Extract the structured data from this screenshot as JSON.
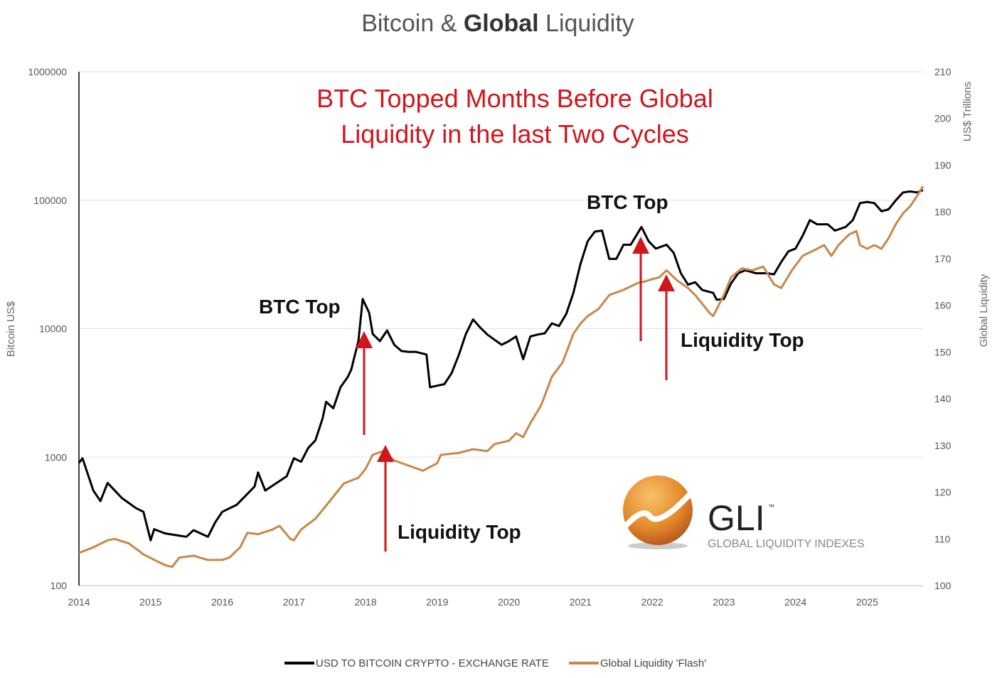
{
  "chart_data": {
    "type": "line",
    "title_parts": [
      "Bitcoin & ",
      "Global",
      " Liquidity"
    ],
    "subtitle_lines": [
      "BTC Topped Months Before Global",
      "Liquidity in the last Two Cycles"
    ],
    "ylabel_left": "Bitcoin US$",
    "ylabel_right": "Global Liquidity",
    "ylabel_right_unit": "US$ Trillions",
    "y_left_scale": "log",
    "ylim_left": [
      100,
      1000000
    ],
    "ylim_right": [
      100,
      210
    ],
    "xlim": [
      2014,
      2025.78
    ],
    "x_ticks": [
      "2014",
      "2015",
      "2016",
      "2017",
      "2018",
      "2019",
      "2020",
      "2021",
      "2022",
      "2023",
      "2024",
      "2025"
    ],
    "y_left_ticks": [
      "100",
      "1000",
      "10000",
      "100000",
      "1000000"
    ],
    "y_right_ticks": [
      "100",
      "110",
      "120",
      "130",
      "140",
      "150",
      "160",
      "170",
      "180",
      "190",
      "200",
      "210"
    ],
    "grid": "horizontal",
    "legend_position": "bottom",
    "colors": {
      "btc": "#000000",
      "liquidity": "#c8874a",
      "annotation": "#d0161c"
    },
    "annotations": [
      {
        "text": "BTC Top",
        "x": 2017.96
      },
      {
        "text": "Liquidity Top",
        "x": 2018.25
      },
      {
        "text": "BTC Top",
        "x": 2021.85
      },
      {
        "text": "Liquidity Top",
        "x": 2022.2
      }
    ],
    "series": [
      {
        "name": "USD TO BITCOIN CRYPTO - EXCHANGE RATE",
        "axis": "left",
        "x": [
          2014.0,
          2014.05,
          2014.2,
          2014.3,
          2014.4,
          2014.5,
          2014.6,
          2014.8,
          2014.9,
          2015.0,
          2015.05,
          2015.2,
          2015.5,
          2015.6,
          2015.8,
          2015.9,
          2016.0,
          2016.2,
          2016.45,
          2016.5,
          2016.6,
          2016.9,
          2017.0,
          2017.1,
          2017.2,
          2017.3,
          2017.4,
          2017.45,
          2017.55,
          2017.65,
          2017.75,
          2017.8,
          2017.85,
          2017.9,
          2017.96,
          2018.05,
          2018.1,
          2018.2,
          2018.3,
          2018.4,
          2018.5,
          2018.6,
          2018.7,
          2018.85,
          2018.9,
          2019.0,
          2019.1,
          2019.2,
          2019.3,
          2019.4,
          2019.5,
          2019.6,
          2019.7,
          2019.8,
          2019.9,
          2020.0,
          2020.1,
          2020.2,
          2020.3,
          2020.4,
          2020.5,
          2020.6,
          2020.7,
          2020.8,
          2020.9,
          2021.0,
          2021.1,
          2021.2,
          2021.3,
          2021.4,
          2021.5,
          2021.6,
          2021.7,
          2021.85,
          2021.95,
          2022.05,
          2022.2,
          2022.3,
          2022.4,
          2022.5,
          2022.6,
          2022.7,
          2022.85,
          2022.9,
          2023.0,
          2023.1,
          2023.2,
          2023.3,
          2023.45,
          2023.6,
          2023.7,
          2023.8,
          2023.9,
          2024.0,
          2024.1,
          2024.2,
          2024.3,
          2024.45,
          2024.55,
          2024.7,
          2024.8,
          2024.9,
          2025.0,
          2025.1,
          2025.2,
          2025.3,
          2025.4,
          2025.5,
          2025.6,
          2025.7,
          2025.78
        ],
        "values": [
          900,
          980,
          550,
          455,
          630,
          550,
          480,
          400,
          375,
          225,
          275,
          255,
          240,
          270,
          240,
          310,
          375,
          425,
          590,
          760,
          550,
          710,
          980,
          920,
          1180,
          1350,
          2000,
          2700,
          2400,
          3500,
          4200,
          4800,
          6200,
          8000,
          17000,
          13300,
          9100,
          8000,
          9700,
          7500,
          6700,
          6600,
          6600,
          6300,
          3500,
          3600,
          3700,
          4500,
          6200,
          9100,
          11800,
          10200,
          9000,
          8200,
          7500,
          8000,
          8700,
          5800,
          8700,
          9000,
          9200,
          11000,
          10500,
          13000,
          19000,
          32000,
          48000,
          57000,
          58000,
          35000,
          35000,
          45000,
          45000,
          62000,
          48000,
          42000,
          45000,
          39000,
          27000,
          22000,
          23000,
          20000,
          19000,
          16800,
          17000,
          22500,
          27000,
          28500,
          27000,
          27000,
          26500,
          33000,
          40000,
          42000,
          53000,
          70000,
          65000,
          65000,
          58000,
          62000,
          70000,
          95000,
          97000,
          95000,
          82000,
          85000,
          100000,
          115000,
          117000,
          115000,
          120000
        ]
      },
      {
        "name": "Global Liquidity 'Flash'",
        "axis": "right",
        "x": [
          2014.0,
          2014.2,
          2014.4,
          2014.5,
          2014.7,
          2014.9,
          2015.0,
          2015.2,
          2015.3,
          2015.4,
          2015.6,
          2015.8,
          2016.0,
          2016.1,
          2016.25,
          2016.35,
          2016.5,
          2016.7,
          2016.8,
          2016.95,
          2017.0,
          2017.1,
          2017.3,
          2017.5,
          2017.7,
          2017.9,
          2018.0,
          2018.1,
          2018.25,
          2018.4,
          2018.6,
          2018.8,
          2019.0,
          2019.05,
          2019.3,
          2019.5,
          2019.7,
          2019.8,
          2020.0,
          2020.1,
          2020.2,
          2020.3,
          2020.45,
          2020.6,
          2020.75,
          2020.9,
          2021.0,
          2021.1,
          2021.25,
          2021.4,
          2021.6,
          2021.8,
          2021.9,
          2022.0,
          2022.1,
          2022.2,
          2022.35,
          2022.5,
          2022.6,
          2022.8,
          2022.85,
          2022.95,
          2023.0,
          2023.1,
          2023.25,
          2023.4,
          2023.55,
          2023.7,
          2023.8,
          2023.95,
          2024.1,
          2024.3,
          2024.4,
          2024.5,
          2024.6,
          2024.75,
          2024.85,
          2024.9,
          2025.0,
          2025.1,
          2025.2,
          2025.3,
          2025.4,
          2025.5,
          2025.6,
          2025.7,
          2025.78
        ],
        "values": [
          107,
          108.2,
          109.7,
          110,
          109,
          106.7,
          105.9,
          104.4,
          104,
          106,
          106.4,
          105.5,
          105.5,
          106,
          108.2,
          111.3,
          111,
          112,
          112.8,
          110,
          109.7,
          112,
          114.3,
          118.1,
          121.9,
          123.1,
          125,
          128,
          128.8,
          126.8,
          125.7,
          124.6,
          126.2,
          128,
          128.4,
          129.2,
          128.8,
          130.3,
          131,
          132.6,
          131.8,
          134.8,
          138.6,
          144.7,
          147.8,
          153.9,
          156.1,
          157.7,
          159.2,
          162.2,
          163.3,
          164.8,
          165.1,
          165.6,
          166,
          167.5,
          165.3,
          163.7,
          162.2,
          158.4,
          157.7,
          160.7,
          162.2,
          166,
          167.9,
          167.5,
          168.3,
          164.5,
          163.7,
          167.5,
          170.6,
          172.1,
          172.9,
          170.6,
          172.9,
          175.2,
          175.9,
          172.9,
          172.1,
          172.9,
          172.1,
          174.4,
          177.4,
          179.7,
          181.2,
          183.5,
          185.5
        ]
      }
    ]
  },
  "logo": {
    "mark": "GLI",
    "tm": "™",
    "tagline": "GLOBAL LIQUIDITY INDEXES"
  }
}
